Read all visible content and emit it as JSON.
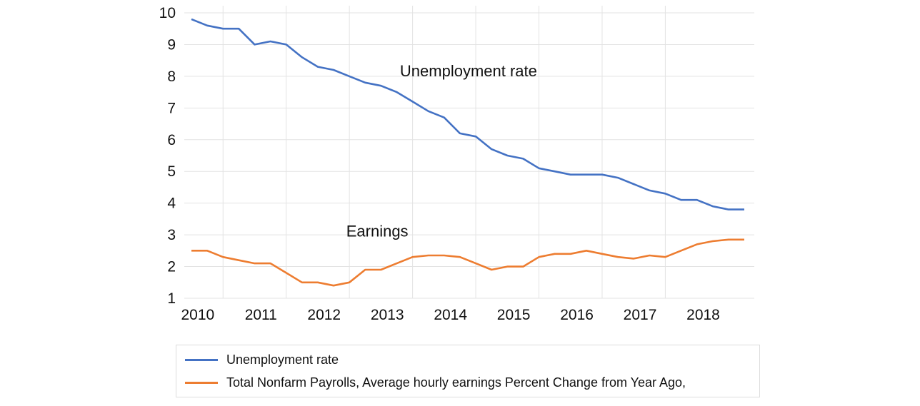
{
  "chart_data": {
    "type": "line",
    "title": "",
    "xlabel": "",
    "ylabel": "",
    "x_ticks": [
      "2010",
      "2011",
      "2012",
      "2013",
      "2014",
      "2015",
      "2016",
      "2017",
      "2018"
    ],
    "y_ticks": [
      "1",
      "2",
      "3",
      "4",
      "5",
      "6",
      "7",
      "8",
      "9",
      "10"
    ],
    "ylim": [
      1,
      10
    ],
    "xlim": [
      2010.0,
      2018.75
    ],
    "grid": true,
    "legend_placement": "bottom",
    "annotations": [
      {
        "text": "Unemployment rate",
        "x": 2013.3,
        "y": 8.0
      },
      {
        "text": "Earnings",
        "x": 2012.45,
        "y": 2.95
      }
    ],
    "series": [
      {
        "name": "Unemployment rate",
        "color": "#4472C4",
        "x": [
          2010.0,
          2010.25,
          2010.5,
          2010.75,
          2011.0,
          2011.25,
          2011.5,
          2011.75,
          2012.0,
          2012.25,
          2012.5,
          2012.75,
          2013.0,
          2013.25,
          2013.5,
          2013.75,
          2014.0,
          2014.25,
          2014.5,
          2014.75,
          2015.0,
          2015.25,
          2015.5,
          2015.75,
          2016.0,
          2016.25,
          2016.5,
          2016.75,
          2017.0,
          2017.25,
          2017.5,
          2017.75,
          2018.0,
          2018.25,
          2018.5,
          2018.75
        ],
        "values": [
          9.8,
          9.6,
          9.5,
          9.5,
          9.0,
          9.1,
          9.0,
          8.6,
          8.3,
          8.2,
          8.0,
          7.8,
          7.7,
          7.5,
          7.2,
          6.9,
          6.7,
          6.2,
          6.1,
          5.7,
          5.5,
          5.4,
          5.1,
          5.0,
          4.9,
          4.9,
          4.9,
          4.8,
          4.6,
          4.4,
          4.3,
          4.1,
          4.1,
          3.9,
          3.8,
          3.8
        ]
      },
      {
        "name": "Total Nonfarm Payrolls, Average hourly earnings Percent Change from Year Ago,",
        "color": "#ED7D31",
        "x": [
          2010.0,
          2010.25,
          2010.5,
          2010.75,
          2011.0,
          2011.25,
          2011.5,
          2011.75,
          2012.0,
          2012.25,
          2012.5,
          2012.75,
          2013.0,
          2013.25,
          2013.5,
          2013.75,
          2014.0,
          2014.25,
          2014.5,
          2014.75,
          2015.0,
          2015.25,
          2015.5,
          2015.75,
          2016.0,
          2016.25,
          2016.5,
          2016.75,
          2017.0,
          2017.25,
          2017.5,
          2017.75,
          2018.0,
          2018.25,
          2018.5,
          2018.75
        ],
        "values": [
          2.5,
          2.5,
          2.3,
          2.2,
          2.1,
          2.1,
          1.8,
          1.5,
          1.5,
          1.4,
          1.5,
          1.9,
          1.9,
          2.1,
          2.3,
          2.35,
          2.35,
          2.3,
          2.1,
          1.9,
          2.0,
          2.0,
          2.3,
          2.4,
          2.4,
          2.5,
          2.4,
          2.3,
          2.25,
          2.35,
          2.3,
          2.5,
          2.7,
          2.8,
          2.85,
          2.85
        ]
      }
    ]
  }
}
